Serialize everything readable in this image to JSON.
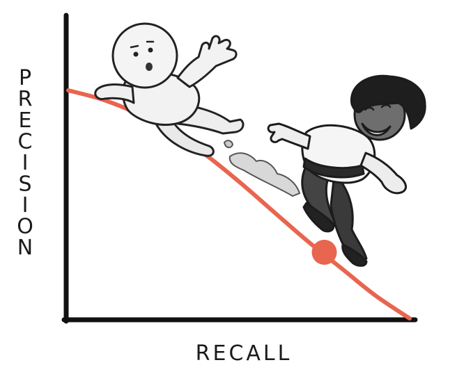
{
  "chart_data": {
    "type": "line",
    "xlabel": "RECALL",
    "ylabel": "PRECISION",
    "xlim": [
      0,
      1
    ],
    "ylim": [
      0,
      1
    ],
    "grid": false,
    "series": [
      {
        "color": "#e8654f",
        "x": [
          0,
          0.1,
          0.2,
          0.3,
          0.4,
          0.5,
          0.6,
          0.7,
          0.8,
          0.9,
          1.0
        ],
        "y": [
          1.0,
          0.96,
          0.9,
          0.82,
          0.72,
          0.6,
          0.47,
          0.34,
          0.22,
          0.1,
          0.0
        ]
      }
    ],
    "highlight_point": {
      "x": 0.75,
      "y": 0.29,
      "color": "#e8654f"
    }
  },
  "illustration": {
    "characters": [
      {
        "name": "white-figure-sliding",
        "color": "#f2f2f2"
      },
      {
        "name": "dark-figure-kicking",
        "color": "#3a3a3a"
      }
    ]
  }
}
